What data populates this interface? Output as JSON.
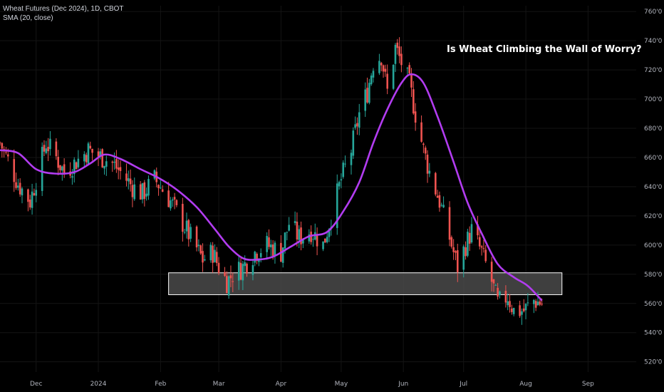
{
  "header": {
    "symbol_line": "Wheat Futures (Dec 2024), 1D, CBOT",
    "indicator_line": "SMA (20, close)"
  },
  "annotation": "Is Wheat Climbing the Wall of Worry?",
  "colors": {
    "background": "#000000",
    "up_candle": "#26a69a",
    "down_candle": "#ef5350",
    "sma": "#b23cf0",
    "zone_fill": "#4a4a4a",
    "zone_border": "#ffffff",
    "grid": "#141414",
    "axis_text": "#b2b5be"
  },
  "chart_data": {
    "type": "candlestick",
    "title": "Wheat Futures (Dec 2024), 1D, CBOT",
    "indicator": "SMA (20, close)",
    "ylim": [
      5130,
      7640
    ],
    "y_ticks": [
      "760'0",
      "740'0",
      "720'0",
      "700'0",
      "680'0",
      "660'0",
      "640'0",
      "620'0",
      "600'0",
      "580'0",
      "560'0",
      "540'0",
      "520'0"
    ],
    "y_tick_values": [
      7600,
      7400,
      7200,
      7000,
      6800,
      6600,
      6400,
      6200,
      6000,
      5800,
      5600,
      5400,
      5200
    ],
    "x_ticks": [
      "Dec",
      "2024",
      "Feb",
      "Mar",
      "Apr",
      "May",
      "Jun",
      "Jul",
      "Aug",
      "Sep"
    ],
    "x_tick_dates": [
      "2023-12-01",
      "2024-01-01",
      "2024-02-01",
      "2024-03-01",
      "2024-04-01",
      "2024-05-01",
      "2024-06-01",
      "2024-07-01",
      "2024-08-01",
      "2024-09-01"
    ],
    "x_range": [
      "2023-11-13",
      "2024-09-25"
    ],
    "support_zone": {
      "x_start": "2024-02-05",
      "x_end": "2024-08-19",
      "y_low": 5660,
      "y_high": 5810
    },
    "close_anchors": [
      [
        "2023-11-13",
        6700
      ],
      [
        "2023-11-17",
        6580
      ],
      [
        "2023-11-22",
        6420
      ],
      [
        "2023-11-28",
        6300
      ],
      [
        "2023-12-01",
        6450
      ],
      [
        "2023-12-06",
        6700
      ],
      [
        "2023-12-11",
        6600
      ],
      [
        "2023-12-15",
        6500
      ],
      [
        "2023-12-20",
        6560
      ],
      [
        "2023-12-27",
        6650
      ],
      [
        "2024-01-03",
        6600
      ],
      [
        "2024-01-08",
        6560
      ],
      [
        "2024-01-12",
        6500
      ],
      [
        "2024-01-18",
        6400
      ],
      [
        "2024-01-23",
        6350
      ],
      [
        "2024-01-29",
        6450
      ],
      [
        "2024-02-01",
        6400
      ],
      [
        "2024-02-06",
        6300
      ],
      [
        "2024-02-12",
        6150
      ],
      [
        "2024-02-16",
        6050
      ],
      [
        "2024-02-22",
        5900
      ],
      [
        "2024-02-27",
        5950
      ],
      [
        "2024-03-01",
        5850
      ],
      [
        "2024-03-05",
        5750
      ],
      [
        "2024-03-08",
        5800
      ],
      [
        "2024-03-13",
        5850
      ],
      [
        "2024-03-19",
        5950
      ],
      [
        "2024-03-25",
        6000
      ],
      [
        "2024-04-01",
        5950
      ],
      [
        "2024-04-05",
        6150
      ],
      [
        "2024-04-10",
        6050
      ],
      [
        "2024-04-16",
        6100
      ],
      [
        "2024-04-22",
        6000
      ],
      [
        "2024-04-26",
        6200
      ],
      [
        "2024-05-01",
        6450
      ],
      [
        "2024-05-06",
        6650
      ],
      [
        "2024-05-10",
        6900
      ],
      [
        "2024-05-14",
        7050
      ],
      [
        "2024-05-17",
        7250
      ],
      [
        "2024-05-21",
        7300
      ],
      [
        "2024-05-24",
        7050
      ],
      [
        "2024-05-28",
        7350
      ],
      [
        "2024-05-31",
        7250
      ],
      [
        "2024-06-04",
        7100
      ],
      [
        "2024-06-07",
        6900
      ],
      [
        "2024-06-11",
        6650
      ],
      [
        "2024-06-14",
        6500
      ],
      [
        "2024-06-19",
        6300
      ],
      [
        "2024-06-24",
        6050
      ],
      [
        "2024-06-28",
        5850
      ],
      [
        "2024-07-02",
        6000
      ],
      [
        "2024-07-05",
        6100
      ],
      [
        "2024-07-10",
        5950
      ],
      [
        "2024-07-15",
        5750
      ],
      [
        "2024-07-18",
        5600
      ],
      [
        "2024-07-23",
        5650
      ],
      [
        "2024-07-26",
        5550
      ],
      [
        "2024-07-31",
        5550
      ],
      [
        "2024-08-05",
        5620
      ],
      [
        "2024-08-09",
        5600
      ]
    ],
    "sma_values": [
      [
        "2023-11-13",
        6650
      ],
      [
        "2023-11-22",
        6630
      ],
      [
        "2023-12-01",
        6520
      ],
      [
        "2023-12-10",
        6490
      ],
      [
        "2023-12-20",
        6500
      ],
      [
        "2023-12-28",
        6560
      ],
      [
        "2024-01-04",
        6620
      ],
      [
        "2024-01-12",
        6590
      ],
      [
        "2024-01-22",
        6520
      ],
      [
        "2024-01-31",
        6460
      ],
      [
        "2024-02-09",
        6380
      ],
      [
        "2024-02-19",
        6260
      ],
      [
        "2024-02-28",
        6110
      ],
      [
        "2024-03-06",
        5990
      ],
      [
        "2024-03-13",
        5910
      ],
      [
        "2024-03-20",
        5900
      ],
      [
        "2024-03-28",
        5920
      ],
      [
        "2024-04-06",
        5990
      ],
      [
        "2024-04-15",
        6060
      ],
      [
        "2024-04-24",
        6090
      ],
      [
        "2024-05-02",
        6230
      ],
      [
        "2024-05-10",
        6430
      ],
      [
        "2024-05-17",
        6700
      ],
      [
        "2024-05-24",
        6930
      ],
      [
        "2024-05-31",
        7110
      ],
      [
        "2024-06-05",
        7170
      ],
      [
        "2024-06-11",
        7110
      ],
      [
        "2024-06-18",
        6880
      ],
      [
        "2024-06-26",
        6570
      ],
      [
        "2024-07-03",
        6290
      ],
      [
        "2024-07-10",
        6080
      ],
      [
        "2024-07-18",
        5870
      ],
      [
        "2024-07-26",
        5780
      ],
      [
        "2024-08-02",
        5720
      ],
      [
        "2024-08-09",
        5620
      ]
    ]
  }
}
